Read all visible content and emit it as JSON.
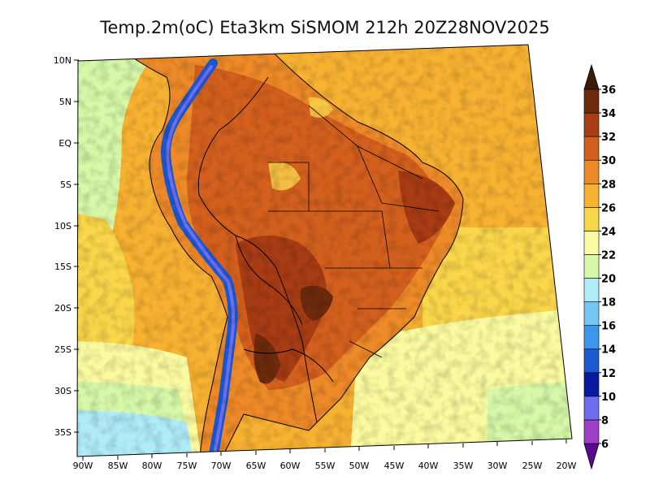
{
  "title": "Temp.2m(oC) Eta3km SiSMOM 212h 20Z28NOV2025",
  "map": {
    "lat_labels": [
      "10N",
      "5N",
      "EQ",
      "5S",
      "10S",
      "15S",
      "20S",
      "25S",
      "30S",
      "35S"
    ],
    "lon_labels": [
      "90W",
      "85W",
      "80W",
      "75W",
      "70W",
      "65W",
      "60W",
      "55W",
      "50W",
      "45W",
      "40W",
      "35W",
      "30W",
      "25W",
      "20W"
    ],
    "lat_values": [
      10,
      5,
      0,
      -5,
      -10,
      -15,
      -20,
      -25,
      -30,
      -35
    ],
    "lon_values": [
      -90,
      -85,
      -80,
      -75,
      -70,
      -65,
      -60,
      -55,
      -50,
      -45,
      -40,
      -35,
      -30,
      -25,
      -20
    ]
  },
  "colorbar": {
    "labels": [
      "6",
      "8",
      "10",
      "12",
      "14",
      "16",
      "18",
      "20",
      "22",
      "24",
      "26",
      "28",
      "30",
      "32",
      "34",
      "36"
    ],
    "colors": [
      "#7a0fa0",
      "#a040c8",
      "#6e6ef2",
      "#0a1aa0",
      "#1c58d0",
      "#3c96ee",
      "#76c6f4",
      "#b0ecf8",
      "#d6f8a8",
      "#fafaa0",
      "#fad64a",
      "#f8b232",
      "#ee8a28",
      "#d4601e",
      "#a83c14",
      "#6e2a0c"
    ],
    "under_color": "#5a0890",
    "over_color": "#3c1c08"
  },
  "field_colors": {
    "ocean_cool": "#b0ecf8",
    "ocean_mild": "#d6f8a8",
    "ocean_warm": "#fafaa0",
    "ocean_hot": "#fad64a",
    "ocean_tropical": "#f8b232",
    "land_warm": "#ee8a28",
    "land_hot": "#d4601e",
    "land_very_hot": "#a83c14",
    "land_extreme": "#6e2a0c",
    "andes_cold": "#1c58d0",
    "andes_very_cold": "#6e6ef2",
    "border": "#000000"
  }
}
